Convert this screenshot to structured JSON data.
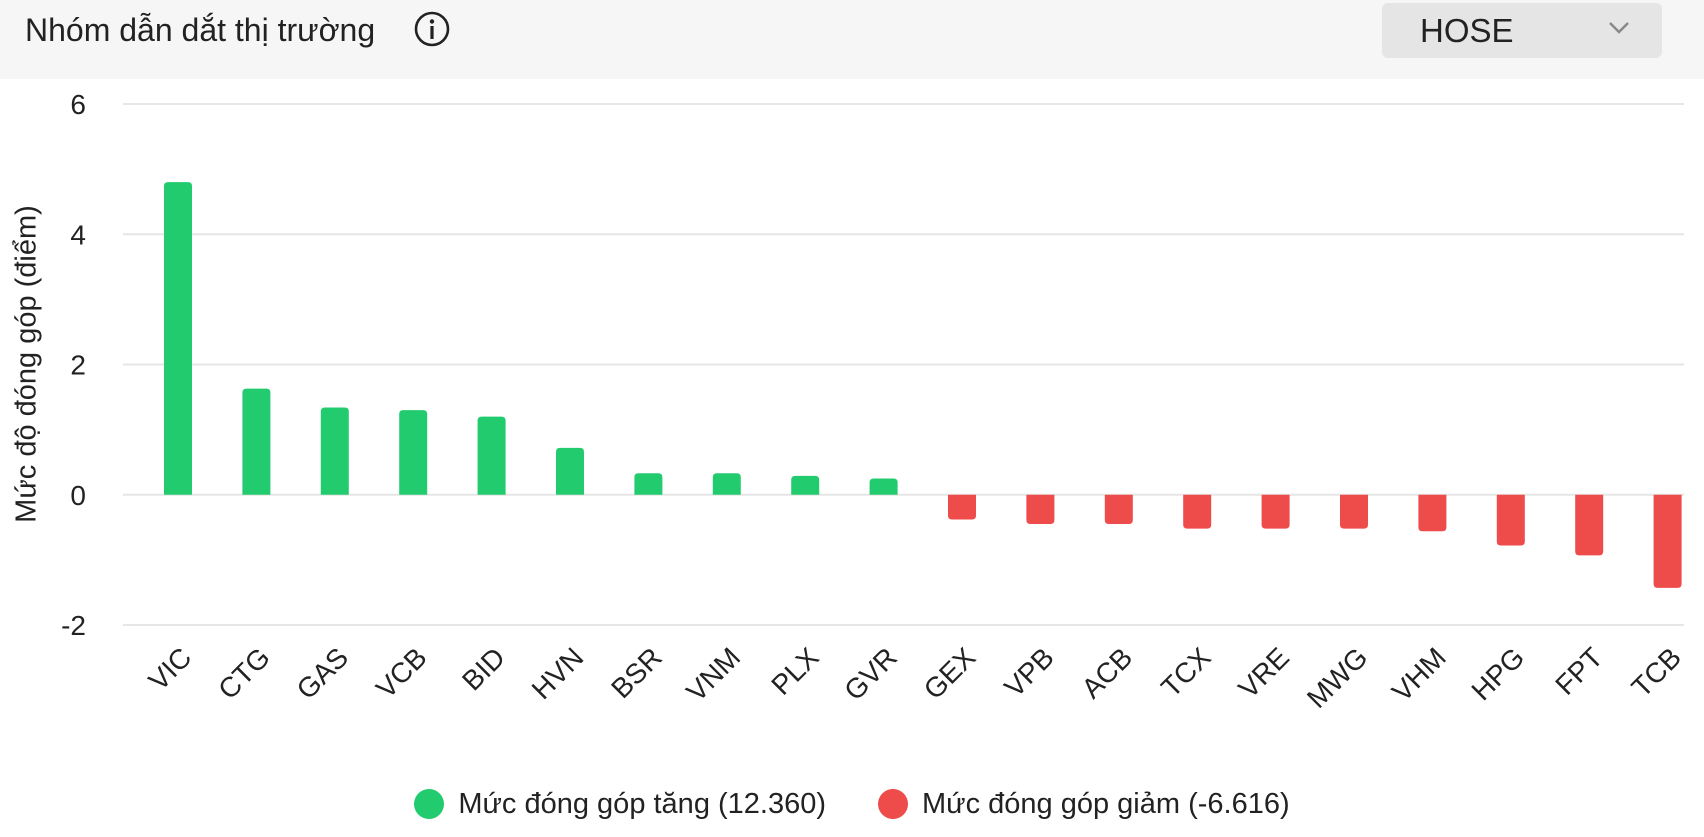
{
  "header": {
    "title": "Nhóm dẫn dắt thị trường",
    "info_icon": "info-circle-icon",
    "exchange_select": {
      "selected": "HOSE",
      "icon": "chevron-down-icon"
    }
  },
  "colors": {
    "positive": "#22cc6e",
    "negative": "#ee4b4b",
    "grid": "#e6e6e6",
    "text": "#222222",
    "header_bg": "#f6f6f6"
  },
  "chart_data": {
    "type": "bar",
    "ylabel": "Mức độ đóng góp (điểm)",
    "xlabel": "",
    "ylim": [
      -2,
      6
    ],
    "yticks": [
      6,
      4,
      2,
      0,
      -2
    ],
    "ytick_labels": [
      "6",
      "4",
      "2",
      "0",
      "-2"
    ],
    "grid": true,
    "categories": [
      "VIC",
      "CTG",
      "GAS",
      "VCB",
      "BID",
      "HVN",
      "BSR",
      "VNM",
      "PLX",
      "GVR",
      "GEX",
      "VPB",
      "ACB",
      "TCX",
      "VRE",
      "MWG",
      "VHM",
      "HPG",
      "FPT",
      "TCB"
    ],
    "values": [
      4.8,
      1.63,
      1.34,
      1.3,
      1.2,
      0.72,
      0.33,
      0.33,
      0.29,
      0.25,
      -0.38,
      -0.45,
      -0.45,
      -0.52,
      -0.52,
      -0.52,
      -0.56,
      -0.78,
      -0.93,
      -1.43
    ],
    "legend_position": "bottom-center",
    "legend": [
      {
        "label": "Mức đóng góp tăng (12.360)",
        "color": "#22cc6e"
      },
      {
        "label": "Mức đóng góp giảm (-6.616)",
        "color": "#ee4b4b"
      }
    ]
  }
}
